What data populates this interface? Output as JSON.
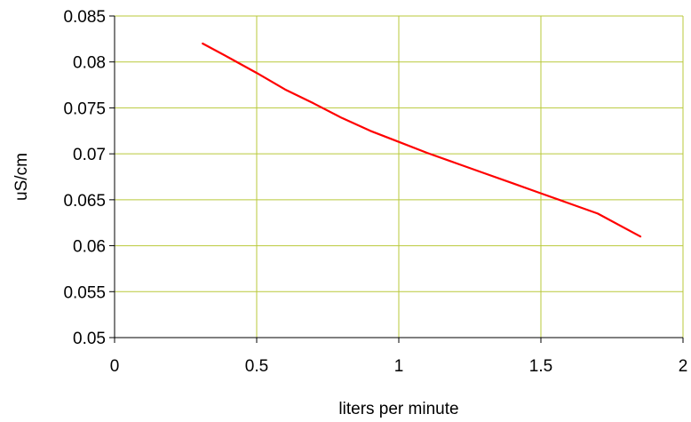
{
  "chart_data": {
    "type": "line",
    "title": "",
    "xlabel": "liters per minute",
    "ylabel": "uS/cm",
    "xlim": [
      0,
      2
    ],
    "ylim": [
      0.05,
      0.085
    ],
    "x_ticks": [
      0,
      0.5,
      1,
      1.5,
      2
    ],
    "x_tick_labels": [
      "0",
      "0.5",
      "1",
      "1.5",
      "2"
    ],
    "y_ticks": [
      0.05,
      0.055,
      0.06,
      0.065,
      0.07,
      0.075,
      0.08,
      0.085
    ],
    "y_tick_labels": [
      "0.05",
      "0.055",
      "0.06",
      "0.065",
      "0.07",
      "0.075",
      "0.08",
      "0.085"
    ],
    "grid": true,
    "legend": "none",
    "series": [
      {
        "color": "#ff0000",
        "x": [
          0.31,
          0.4,
          0.5,
          0.6,
          0.7,
          0.8,
          0.9,
          1.0,
          1.1,
          1.2,
          1.3,
          1.4,
          1.5,
          1.6,
          1.7,
          1.85
        ],
        "y": [
          0.082,
          0.0805,
          0.0788,
          0.077,
          0.0755,
          0.0739,
          0.0725,
          0.0713,
          0.0701,
          0.069,
          0.0679,
          0.0668,
          0.0657,
          0.0646,
          0.0635,
          0.061
        ]
      }
    ],
    "colors": {
      "grid": "#b9c93a",
      "axis": "#000000",
      "line": "#ff0000"
    }
  }
}
